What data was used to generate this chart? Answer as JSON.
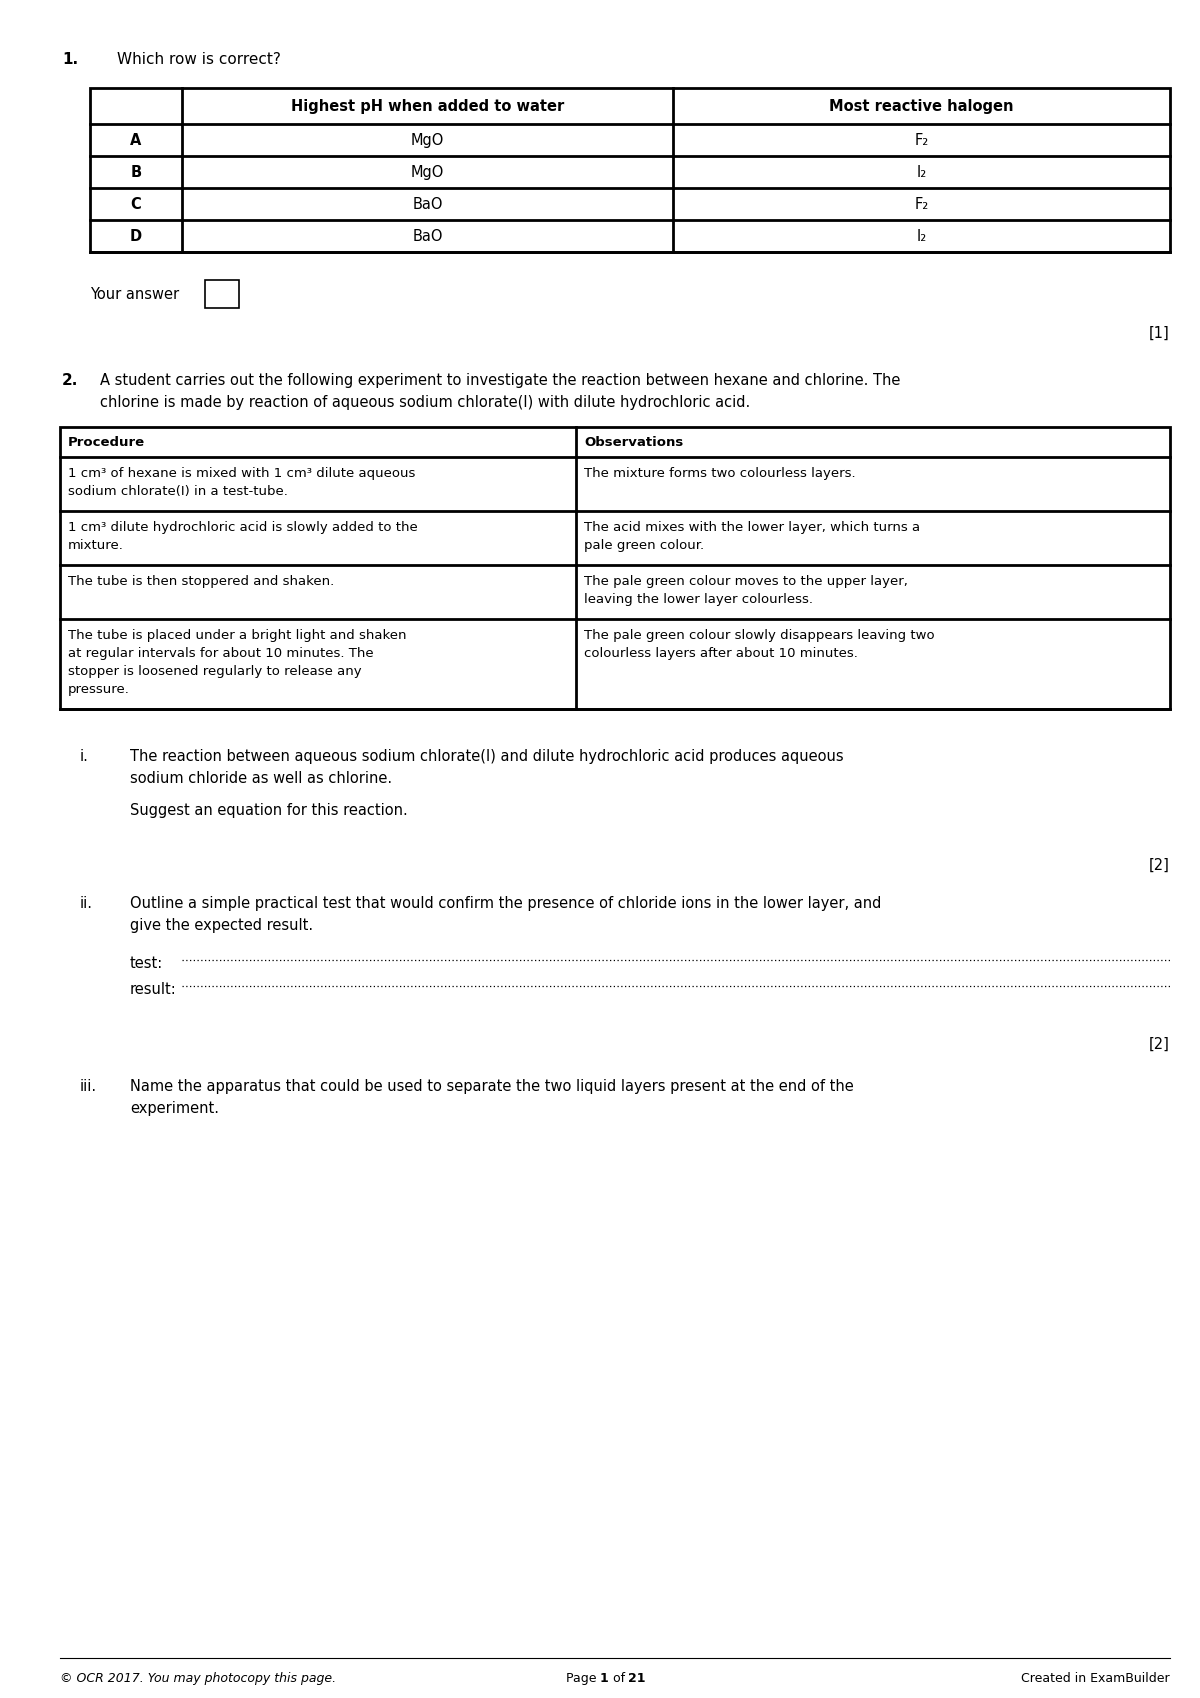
{
  "bg_color": "#ffffff",
  "q1_number": "1.",
  "q1_text": "Which row is correct?",
  "table1_headers": [
    "",
    "Highest pH when added to water",
    "Most reactive halogen"
  ],
  "table1_rows": [
    [
      "A",
      "MgO",
      "F₂"
    ],
    [
      "B",
      "MgO",
      "I₂"
    ],
    [
      "C",
      "BaO",
      "F₂"
    ],
    [
      "D",
      "BaO",
      "I₂"
    ]
  ],
  "your_answer_label": "Your answer",
  "mark1": "[1]",
  "q2_number": "2.",
  "q2_line1": "A student carries out the following experiment to investigate the reaction between hexane and chlorine. The",
  "q2_line2": "chlorine is made by reaction of aqueous sodium chlorate(I) with dilute hydrochloric acid.",
  "table2_headers": [
    "Procedure",
    "Observations"
  ],
  "table2_rows": [
    [
      "1 cm³ of hexane is mixed with 1 cm³ dilute aqueous\nsodium chlorate(I) in a test-tube.",
      "The mixture forms two colourless layers."
    ],
    [
      "1 cm³ dilute hydrochloric acid is slowly added to the\nmixture.",
      "The acid mixes with the lower layer, which turns a\npale green colour."
    ],
    [
      "The tube is then stoppered and shaken.",
      "The pale green colour moves to the upper layer,\nleaving the lower layer colourless."
    ],
    [
      "The tube is placed under a bright light and shaken\nat regular intervals for about 10 minutes. The\nstopper is loosened regularly to release any\npressure.",
      "The pale green colour slowly disappears leaving two\ncolourless layers after about 10 minutes."
    ]
  ],
  "qi_roman": "i.",
  "qi_line1": "The reaction between aqueous sodium chlorate(I) and dilute hydrochloric acid produces aqueous",
  "qi_line2": "sodium chloride as well as chlorine.",
  "qi_text2": "Suggest an equation for this reaction.",
  "mark2": "[2]",
  "qii_roman": "ii.",
  "qii_line1": "Outline a simple practical test that would confirm the presence of chloride ions in the lower layer, and",
  "qii_line2": "give the expected result.",
  "test_label": "test:",
  "result_label": "result:",
  "mark3": "[2]",
  "qiii_roman": "iii.",
  "qiii_line1": "Name the apparatus that could be used to separate the two liquid layers present at the end of the",
  "qiii_line2": "experiment.",
  "footer_left": "© OCR 2017. You may photocopy this page.",
  "footer_bold1": "1",
  "footer_of": " of ",
  "footer_bold2": "21",
  "footer_right": "Created in ExamBuilder"
}
